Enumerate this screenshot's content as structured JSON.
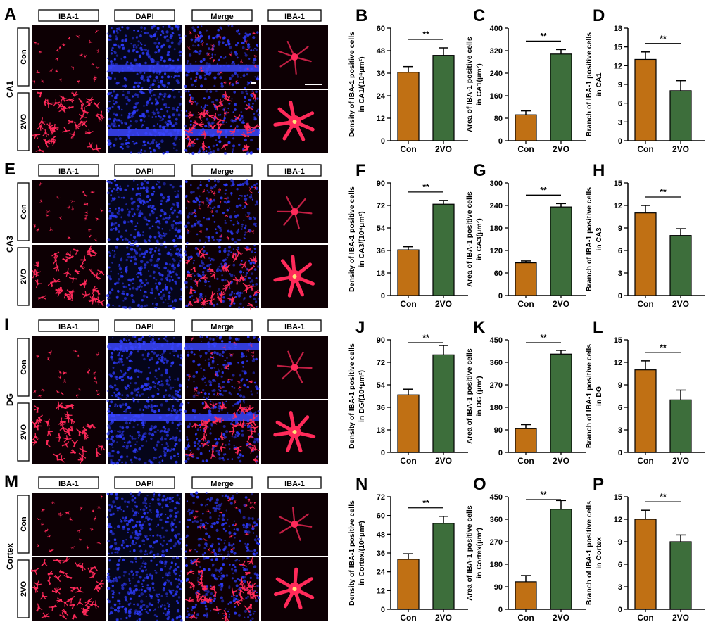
{
  "figure": {
    "colors": {
      "con": "#c07014",
      "vo": "#3d6e3b",
      "cell": "#ff2a5a",
      "nuclei": "#2d3bff",
      "bg": "#000000"
    },
    "channel_labels": [
      "IBA-1",
      "DAPI",
      "Merge",
      "IBA-1"
    ],
    "group_labels": [
      "Con",
      "2VO"
    ],
    "regions": [
      {
        "letter": "A",
        "name": "CA1"
      },
      {
        "letter": "E",
        "name": "CA3"
      },
      {
        "letter": "I",
        "name": "DG"
      },
      {
        "letter": "M",
        "name": "Cortex"
      }
    ]
  },
  "chart_data": [
    {
      "letter": "B",
      "type": "bar",
      "region": "CA1",
      "ylabel1": "Density of IBA-1 positive cells",
      "ylabel2": "in CA1/(10⁴μm²)",
      "categories": [
        "Con",
        "2VO"
      ],
      "values": [
        36.5,
        45.5
      ],
      "errors": [
        3.0,
        4.0
      ],
      "ylim": [
        0,
        60
      ],
      "ticks": [
        0,
        12,
        24,
        36,
        48,
        60
      ],
      "significance": "**"
    },
    {
      "letter": "C",
      "type": "bar",
      "region": "CA1",
      "ylabel1": "Area of IBA-1 positive cells",
      "ylabel2": "in CA1(μm²)",
      "categories": [
        "Con",
        "2VO"
      ],
      "values": [
        92,
        308
      ],
      "errors": [
        14,
        16
      ],
      "ylim": [
        0,
        400
      ],
      "ticks": [
        0,
        80,
        160,
        240,
        320,
        400
      ],
      "significance": "**"
    },
    {
      "letter": "D",
      "type": "bar",
      "region": "CA1",
      "ylabel1": "Branch of IBA-1 positive cells",
      "ylabel2": "in CA1",
      "categories": [
        "Con",
        "2VO"
      ],
      "values": [
        13.0,
        8.0
      ],
      "errors": [
        1.2,
        1.6
      ],
      "ylim": [
        0,
        18
      ],
      "ticks": [
        0,
        3,
        6,
        9,
        12,
        15,
        18
      ],
      "significance": "**"
    },
    {
      "letter": "F",
      "type": "bar",
      "region": "CA3",
      "ylabel1": "Density of IBA-1 positive cells",
      "ylabel2": "in CA3/(10⁴μm²)",
      "categories": [
        "Con",
        "2VO"
      ],
      "values": [
        36.5,
        73
      ],
      "errors": [
        2.5,
        3.0
      ],
      "ylim": [
        0,
        90
      ],
      "ticks": [
        0,
        18,
        36,
        54,
        72,
        90
      ],
      "significance": "**"
    },
    {
      "letter": "G",
      "type": "bar",
      "region": "CA3",
      "ylabel1": "Area of IBA-1 positive cells",
      "ylabel2": "in CA3(μm²)",
      "categories": [
        "Con",
        "2VO"
      ],
      "values": [
        87,
        236
      ],
      "errors": [
        5,
        9
      ],
      "ylim": [
        0,
        300
      ],
      "ticks": [
        0,
        60,
        120,
        180,
        240,
        300
      ],
      "significance": "**"
    },
    {
      "letter": "H",
      "type": "bar",
      "region": "CA3",
      "ylabel1": "Branch of IBA-1 positive cells",
      "ylabel2": "in CA3",
      "categories": [
        "Con",
        "2VO"
      ],
      "values": [
        11.0,
        8.0
      ],
      "errors": [
        1.0,
        0.9
      ],
      "ylim": [
        0,
        15
      ],
      "ticks": [
        0,
        3,
        6,
        9,
        12,
        15
      ],
      "significance": "**"
    },
    {
      "letter": "J",
      "type": "bar",
      "region": "DG",
      "ylabel1": "Density of IBA-1 positive cells",
      "ylabel2": "in DG/(10⁴μm²)",
      "categories": [
        "Con",
        "2VO"
      ],
      "values": [
        46,
        78
      ],
      "errors": [
        4.5,
        7.5
      ],
      "ylim": [
        0,
        90
      ],
      "ticks": [
        0,
        18,
        36,
        54,
        72,
        90
      ],
      "significance": "**"
    },
    {
      "letter": "K",
      "type": "bar",
      "region": "DG",
      "ylabel1": "Area of IBA-1 positive cells",
      "ylabel2": "in DG (μm²)",
      "categories": [
        "Con",
        "2VO"
      ],
      "values": [
        95,
        393
      ],
      "errors": [
        16,
        15
      ],
      "ylim": [
        0,
        450
      ],
      "ticks": [
        0,
        90,
        180,
        270,
        360,
        450
      ],
      "significance": "**"
    },
    {
      "letter": "L",
      "type": "bar",
      "region": "DG",
      "ylabel1": "Branch of IBA-1 positive cells",
      "ylabel2": "in DG",
      "categories": [
        "Con",
        "2VO"
      ],
      "values": [
        11.0,
        7.0
      ],
      "errors": [
        1.2,
        1.3
      ],
      "ylim": [
        0,
        15
      ],
      "ticks": [
        0,
        3,
        6,
        9,
        12,
        15
      ],
      "significance": "**"
    },
    {
      "letter": "N",
      "type": "bar",
      "region": "Cortex",
      "ylabel1": "Density of IBA-1 positive cells",
      "ylabel2": "in Cortex/(10⁴μm²)",
      "categories": [
        "Con",
        "2VO"
      ],
      "values": [
        32,
        55
      ],
      "errors": [
        3.5,
        4.5
      ],
      "ylim": [
        0,
        72
      ],
      "ticks": [
        0,
        12,
        24,
        36,
        48,
        60,
        72
      ],
      "significance": "**"
    },
    {
      "letter": "O",
      "type": "bar",
      "region": "Cortex",
      "ylabel1": "Area of IBA-1 positive cells",
      "ylabel2": "in Cortex(μm²)",
      "categories": [
        "Con",
        "2VO"
      ],
      "values": [
        110,
        400
      ],
      "errors": [
        25,
        35
      ],
      "ylim": [
        0,
        450
      ],
      "ticks": [
        0,
        90,
        180,
        270,
        360,
        450
      ],
      "significance": "**"
    },
    {
      "letter": "P",
      "type": "bar",
      "region": "Cortex",
      "ylabel1": "Branch of IBA-1 positive cells",
      "ylabel2": "in Cortex",
      "categories": [
        "Con",
        "2VO"
      ],
      "values": [
        12.0,
        9.0
      ],
      "errors": [
        1.2,
        0.9
      ],
      "ylim": [
        0,
        15
      ],
      "ticks": [
        0,
        3,
        6,
        9,
        12,
        15
      ],
      "significance": "**"
    }
  ]
}
